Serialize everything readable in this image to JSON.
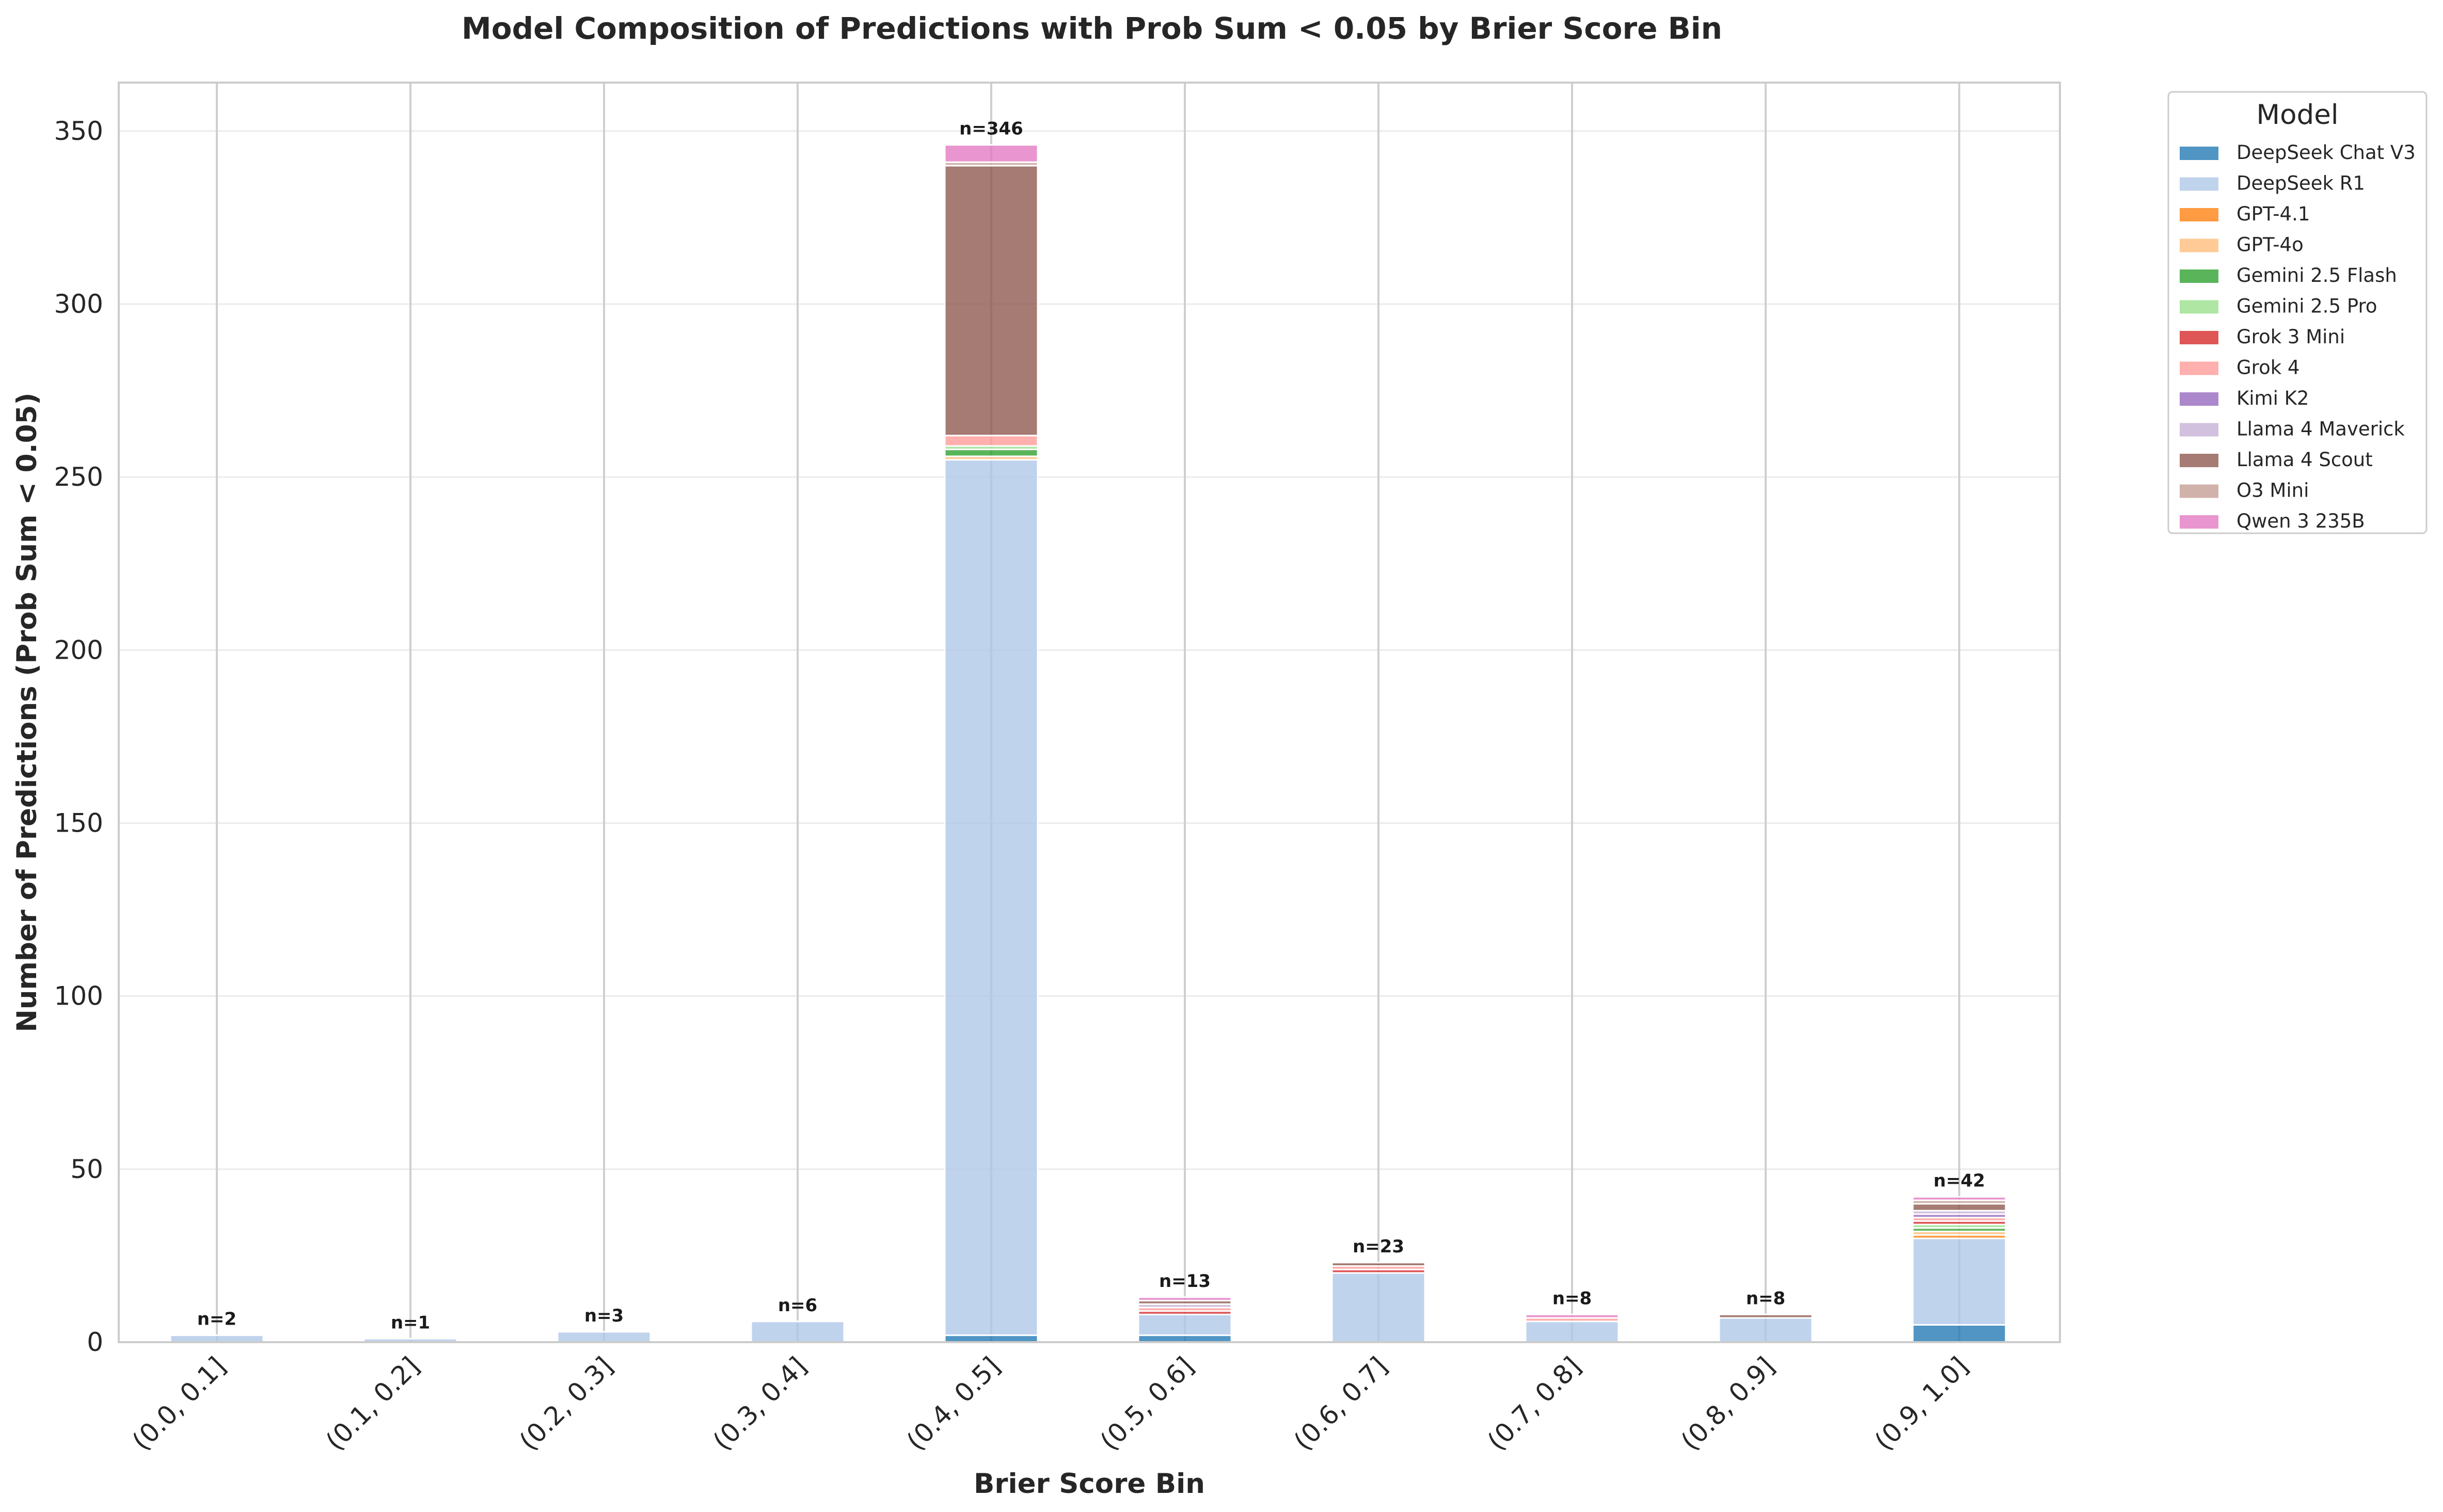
{
  "chart_data": {
    "type": "bar",
    "stacked": true,
    "title": "Model Composition of Predictions with Prob Sum < 0.05 by Brier Score Bin",
    "xlabel": "Brier Score Bin",
    "ylabel": "Number of Predictions (Prob Sum < 0.05)",
    "ylim": [
      0,
      364
    ],
    "yticks": [
      0,
      50,
      100,
      150,
      200,
      250,
      300,
      350
    ],
    "grid": true,
    "legend_title": "Model",
    "legend_position": "outside right, top",
    "categories": [
      "(0.0, 0.1]",
      "(0.1, 0.2]",
      "(0.2, 0.3]",
      "(0.3, 0.4]",
      "(0.4, 0.5]",
      "(0.5, 0.6]",
      "(0.6, 0.7]",
      "(0.7, 0.8]",
      "(0.8, 0.9]",
      "(0.9, 1.0]"
    ],
    "totals": [
      2,
      1,
      3,
      6,
      346,
      13,
      23,
      8,
      8,
      42
    ],
    "total_labels": [
      "n=2",
      "n=1",
      "n=3",
      "n=6",
      "n=346",
      "n=13",
      "n=23",
      "n=8",
      "n=8",
      "n=42"
    ],
    "series": [
      {
        "name": "DeepSeek Chat V3",
        "color": "#1f77b4",
        "values": [
          0,
          0,
          0,
          0,
          2,
          2,
          0,
          0,
          0,
          5
        ]
      },
      {
        "name": "DeepSeek R1",
        "color": "#aec7e8",
        "values": [
          2,
          1,
          3,
          6,
          253,
          6,
          20,
          6,
          7,
          25
        ]
      },
      {
        "name": "GPT-4.1",
        "color": "#ff7f0e",
        "values": [
          0,
          0,
          0,
          0,
          0,
          0,
          0,
          0,
          0,
          1
        ]
      },
      {
        "name": "GPT-4o",
        "color": "#ffbb78",
        "values": [
          0,
          0,
          0,
          0,
          1,
          0,
          0,
          0,
          0,
          1
        ]
      },
      {
        "name": "Gemini 2.5 Flash",
        "color": "#2ca02c",
        "values": [
          0,
          0,
          0,
          0,
          2,
          0,
          0,
          0,
          0,
          1
        ]
      },
      {
        "name": "Gemini 2.5 Pro",
        "color": "#98df8a",
        "values": [
          0,
          0,
          0,
          0,
          1,
          0,
          0,
          0,
          0,
          1
        ]
      },
      {
        "name": "Grok 3 Mini",
        "color": "#d62728",
        "values": [
          0,
          0,
          0,
          0,
          0,
          1,
          1,
          0,
          0,
          1
        ]
      },
      {
        "name": "Grok 4",
        "color": "#ff9896",
        "values": [
          0,
          0,
          0,
          0,
          3,
          1,
          1,
          1,
          0,
          1
        ]
      },
      {
        "name": "Kimi K2",
        "color": "#9467bd",
        "values": [
          0,
          0,
          0,
          0,
          0,
          0,
          0,
          0,
          0,
          1
        ]
      },
      {
        "name": "Llama 4 Maverick",
        "color": "#c5b0d5",
        "values": [
          0,
          0,
          0,
          0,
          0,
          1,
          0,
          0,
          0,
          1
        ]
      },
      {
        "name": "Llama 4 Scout",
        "color": "#8c564b",
        "values": [
          0,
          0,
          0,
          0,
          78,
          1,
          1,
          0,
          1,
          2
        ]
      },
      {
        "name": "O3 Mini",
        "color": "#c49c94",
        "values": [
          0,
          0,
          0,
          0,
          1,
          0,
          0,
          0,
          0,
          1
        ]
      },
      {
        "name": "Qwen 3 235B",
        "color": "#e377c2",
        "values": [
          0,
          0,
          0,
          0,
          5,
          1,
          0,
          1,
          0,
          1
        ]
      }
    ]
  }
}
